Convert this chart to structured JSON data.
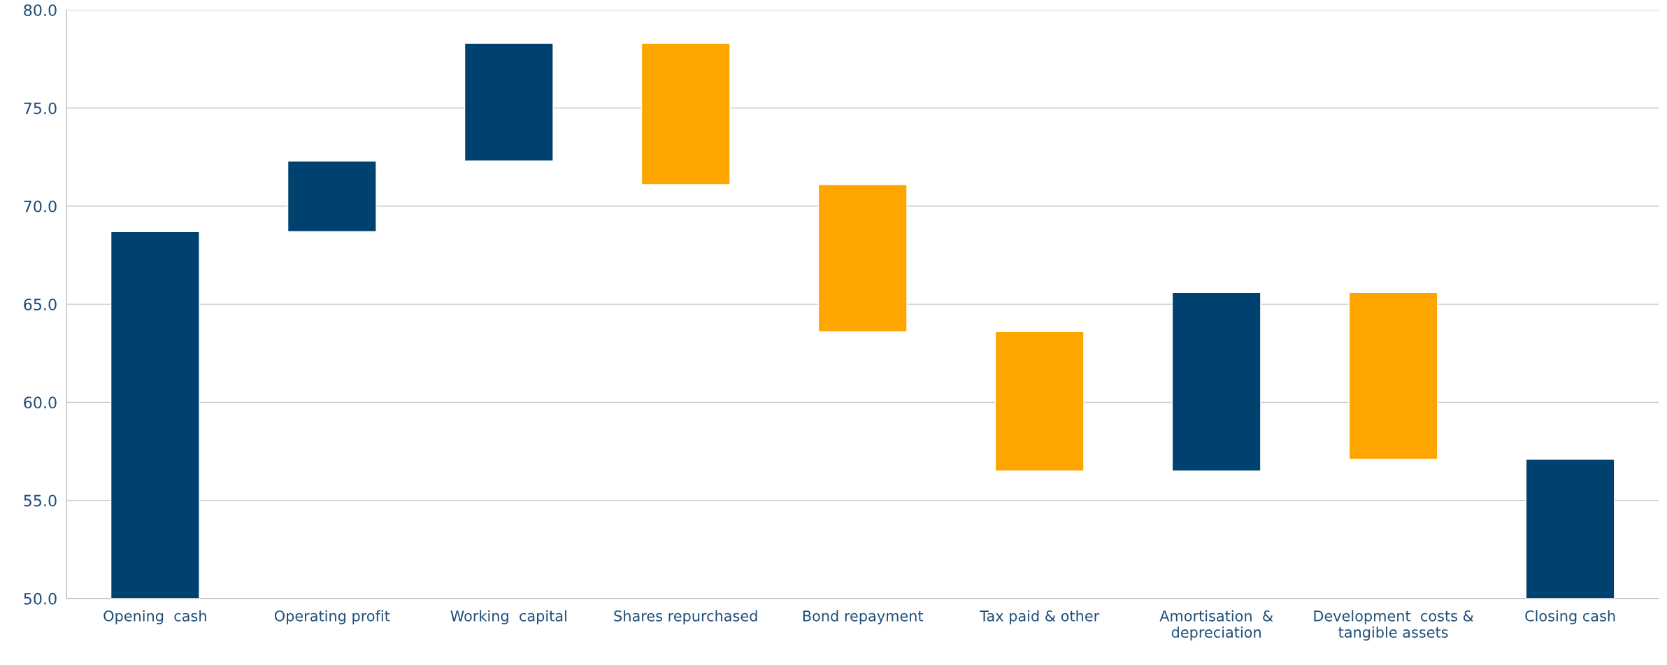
{
  "chart_data": {
    "type": "bar",
    "categories": [
      "Opening  cash",
      "Operating profit",
      "Working  capital",
      "Shares repurchased",
      "Bond repayment",
      "Tax paid & other",
      "Amortisation  &\ndepreciation",
      "Development  costs &\ntangible assets",
      "Closing cash"
    ],
    "base": [
      50,
      68.7,
      72.3,
      71.1,
      63.6,
      56.5,
      56.5,
      57.1,
      50
    ],
    "values": [
      18.7,
      3.6,
      6.0,
      7.2,
      7.5,
      7.1,
      9.1,
      8.5,
      7.1
    ],
    "colors": [
      "#00426f",
      "#00426f",
      "#00426f",
      "#ffa500",
      "#ffa500",
      "#ffa500",
      "#00426f",
      "#ffa500",
      "#00426f"
    ],
    "ylim": [
      50,
      80
    ],
    "yticks": [
      {
        "value": 50,
        "label": "50.0"
      },
      {
        "value": 55,
        "label": "55.0"
      },
      {
        "value": 60,
        "label": "60.0"
      },
      {
        "value": 65,
        "label": "65.0"
      },
      {
        "value": 70,
        "label": "70.0"
      },
      {
        "value": 75,
        "label": "75.0"
      },
      {
        "value": 80,
        "label": "80.0"
      }
    ],
    "grid": "y"
  }
}
